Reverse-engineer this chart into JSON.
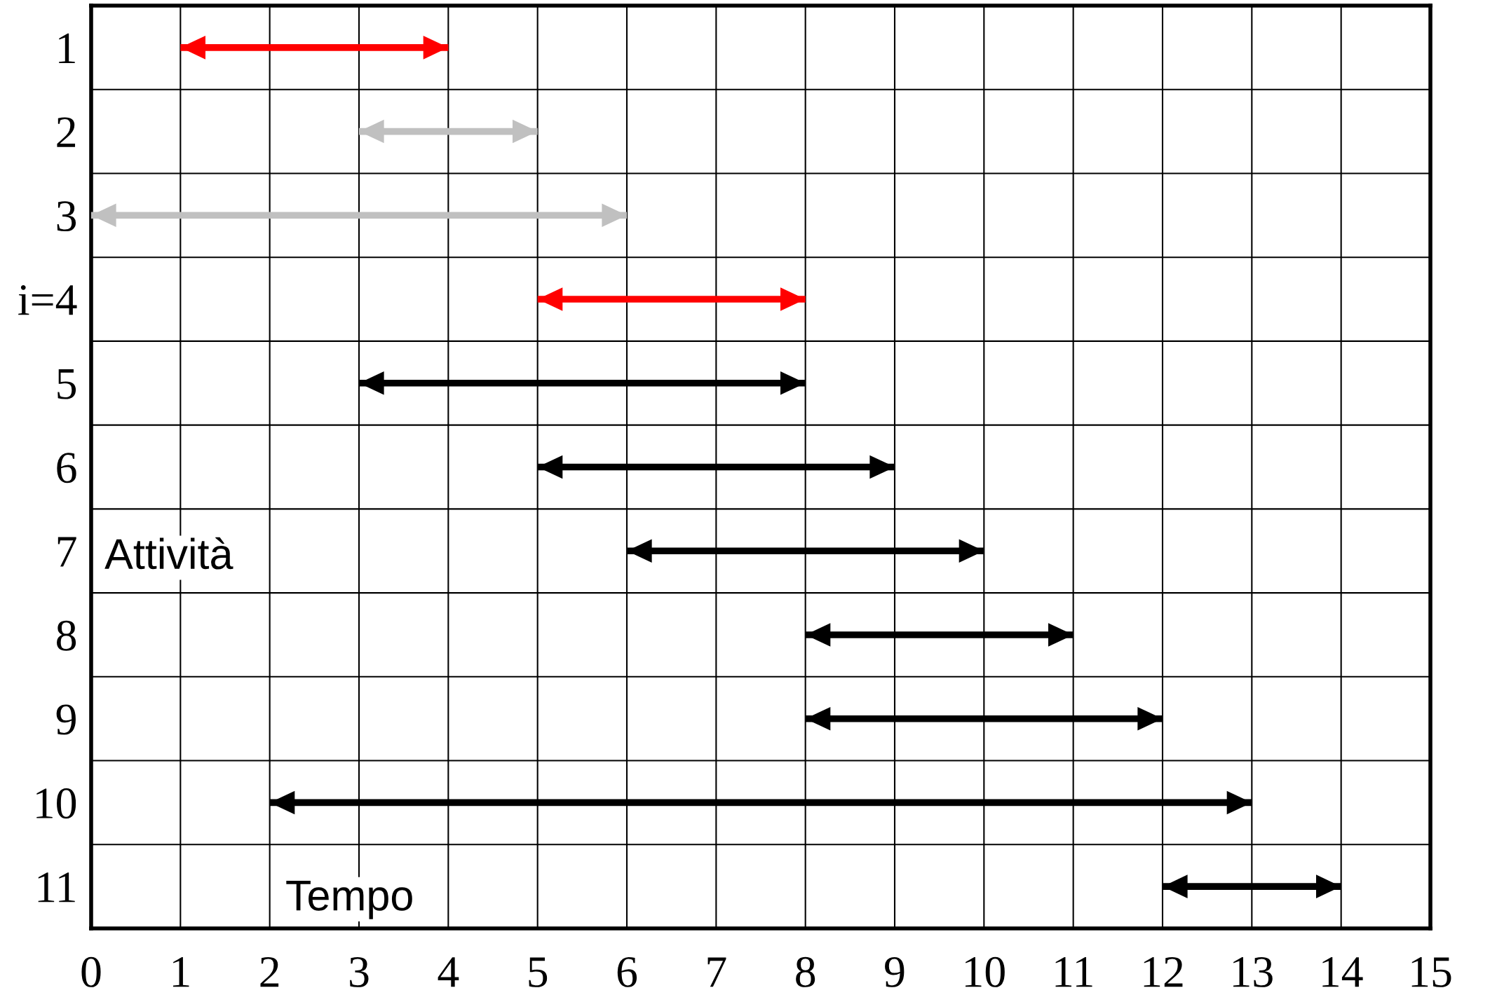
{
  "chart_data": {
    "type": "bar",
    "orientation": "horizontal",
    "categories": [
      "1",
      "2",
      "3",
      "i=4",
      "5",
      "6",
      "7",
      "8",
      "9",
      "10",
      "11"
    ],
    "base": [
      1,
      3,
      0,
      5,
      3,
      5,
      6,
      8,
      8,
      2,
      12
    ],
    "values": [
      3,
      2,
      6,
      3,
      5,
      4,
      4,
      3,
      4,
      11,
      2
    ],
    "colors": [
      "#ff0000",
      "#c0c0c0",
      "#c0c0c0",
      "#ff0000",
      "#000000",
      "#000000",
      "#000000",
      "#000000",
      "#000000",
      "#000000",
      "#000000"
    ],
    "xlim": [
      0,
      15
    ],
    "xticks": [
      0,
      1,
      2,
      3,
      4,
      5,
      6,
      7,
      8,
      9,
      10,
      11,
      12,
      13,
      14,
      15
    ],
    "grid": true,
    "annotations": [
      "Attività",
      "Tempo"
    ]
  }
}
